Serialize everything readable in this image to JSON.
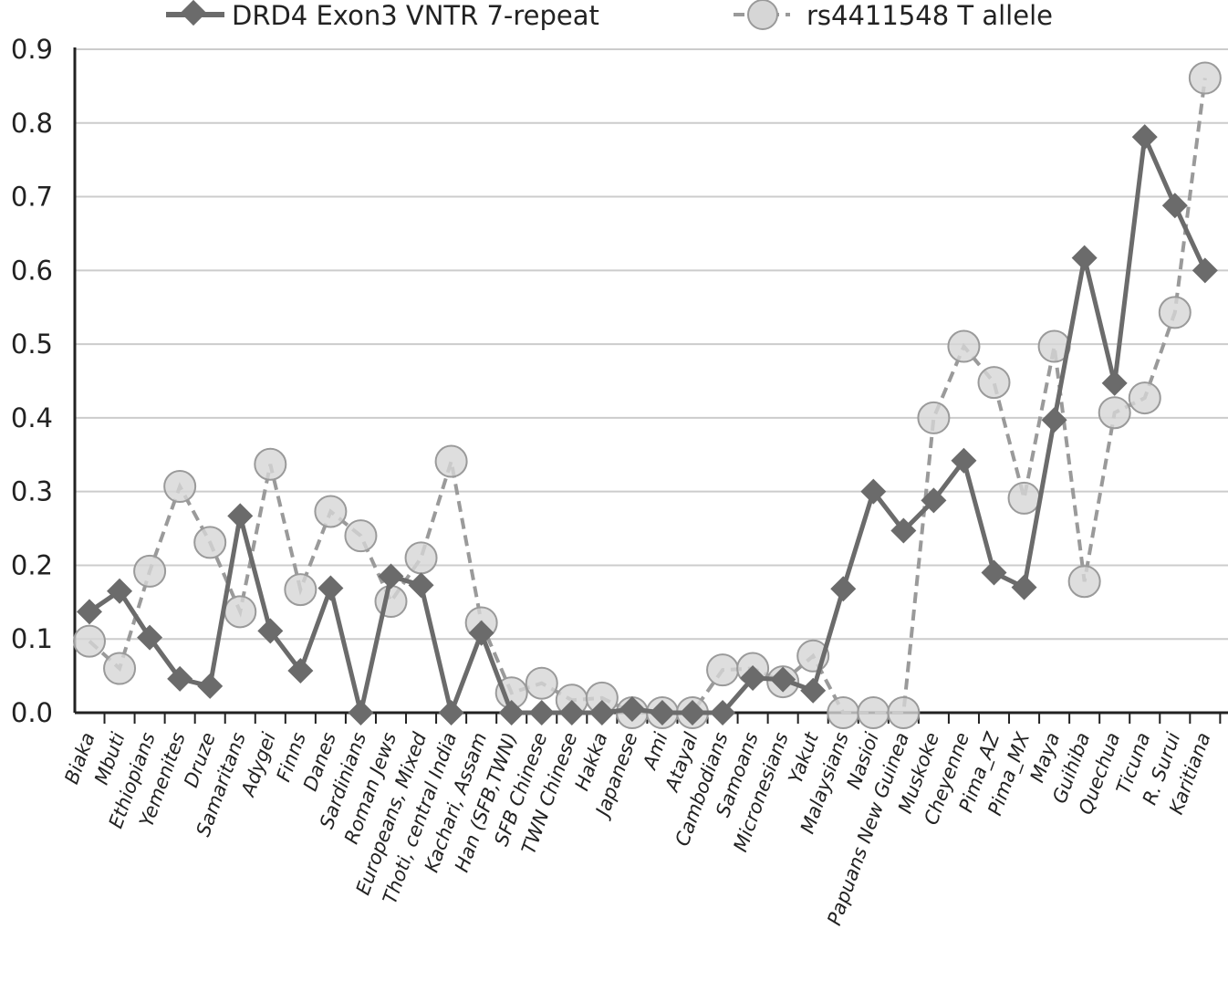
{
  "chart_data": {
    "type": "line",
    "title": "",
    "xlabel": "",
    "ylabel": "",
    "ylim": [
      0,
      0.9
    ],
    "yticks": [
      "0.0",
      "0.1",
      "0.2",
      "0.3",
      "0.4",
      "0.5",
      "0.6",
      "0.7",
      "0.8",
      "0.9"
    ],
    "grid": "horizontal",
    "legend_position": "top",
    "categories": [
      "Biaka",
      "Mbuti",
      "Ethiopians",
      "Yemenites",
      "Druze",
      "Samaritans",
      "Adygei",
      "Finns",
      "Danes",
      "Sardinians",
      "Roman Jews",
      "Europeans, Mixed",
      "Thoti, central India",
      "Kachari, Assam",
      "Han (SFB,TWN)",
      "SFB Chinese",
      "TWN Chinese",
      "Hakka",
      "Japanese",
      "Ami",
      "Atayal",
      "Cambodians",
      "Samoans",
      "Micronesians",
      "Yakut",
      "Malaysians",
      "Nasioi",
      "Papuans New Guinea",
      "Muskoke",
      "Cheyenne",
      "Pima_AZ",
      "Pima_MX",
      "Maya",
      "Guihiba",
      "Quechua",
      "Ticuna",
      "R. Surui",
      "Karitiana"
    ],
    "series": [
      {
        "name": "DRD4 Exon3 VNTR 7-repeat",
        "style": "solid",
        "marker": "diamond",
        "color": "#6b6b6b",
        "values": [
          0.137,
          0.165,
          0.102,
          0.046,
          0.036,
          0.267,
          0.111,
          0.057,
          0.169,
          0.0,
          0.185,
          0.173,
          0.0,
          0.108,
          0.0,
          0.0,
          0.0,
          0.0,
          0.005,
          0.0,
          0.0,
          0.0,
          0.047,
          0.045,
          0.03,
          0.168,
          0.3,
          0.247,
          0.288,
          0.342,
          0.19,
          0.17,
          0.397,
          0.617,
          0.447,
          0.781,
          0.688,
          0.6
        ]
      },
      {
        "name": "rs4411548 T allele",
        "style": "dashed",
        "marker": "circle",
        "color": "#9a9a9a",
        "values": [
          0.097,
          0.06,
          0.192,
          0.307,
          0.231,
          0.137,
          0.337,
          0.167,
          0.273,
          0.24,
          0.151,
          0.21,
          0.341,
          0.122,
          0.027,
          0.04,
          0.017,
          0.02,
          0.0,
          0.0,
          0.0,
          0.058,
          0.06,
          0.042,
          0.077,
          0.0,
          0.0,
          0.0,
          0.4,
          0.497,
          0.448,
          0.291,
          0.497,
          0.178,
          0.407,
          0.427,
          0.543,
          0.861
        ]
      }
    ]
  },
  "colors": {
    "axis": "#222222",
    "grid": "#cccccc",
    "solid_line": "#6b6b6b",
    "dashed_line": "#9a9a9a",
    "marker_fill": "#d6d6d6"
  }
}
